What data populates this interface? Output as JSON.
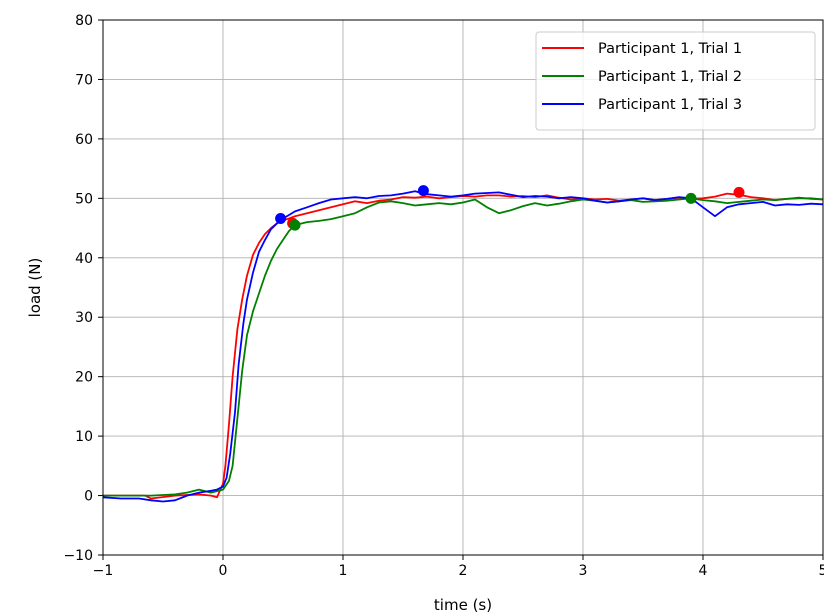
{
  "chart_data": {
    "type": "line",
    "title": "",
    "xlabel": "time (s)",
    "ylabel": "load (N)",
    "xlim": [
      -1,
      5
    ],
    "ylim": [
      -10,
      80
    ],
    "xticks": [
      -1,
      0,
      1,
      2,
      3,
      4,
      5
    ],
    "yticks": [
      -10,
      0,
      10,
      20,
      30,
      40,
      50,
      60,
      70,
      80
    ],
    "xtick_labels": [
      "−1",
      "0",
      "1",
      "2",
      "3",
      "4",
      "5"
    ],
    "ytick_labels": [
      "−10",
      "0",
      "10",
      "20",
      "30",
      "40",
      "50",
      "60",
      "70",
      "80"
    ],
    "grid": true,
    "legend_position": "top-right",
    "series": [
      {
        "name": "Participant 1, Trial 1",
        "color": "#ff0000",
        "x": [
          -1,
          -0.8,
          -0.65,
          -0.6,
          -0.4,
          -0.2,
          -0.1,
          -0.05,
          0,
          0.02,
          0.05,
          0.08,
          0.12,
          0.16,
          0.2,
          0.25,
          0.3,
          0.35,
          0.4,
          0.45,
          0.5,
          0.55,
          0.6,
          0.7,
          0.8,
          0.9,
          1.0,
          1.1,
          1.2,
          1.3,
          1.4,
          1.5,
          1.6,
          1.7,
          1.8,
          1.9,
          2.0,
          2.1,
          2.2,
          2.3,
          2.4,
          2.5,
          2.6,
          2.7,
          2.8,
          2.9,
          3.0,
          3.1,
          3.2,
          3.3,
          3.4,
          3.5,
          3.6,
          3.7,
          3.8,
          3.9,
          4.0,
          4.1,
          4.2,
          4.3,
          4.4,
          4.5,
          4.6,
          4.7,
          4.8,
          4.9,
          5.0
        ],
        "y": [
          0,
          0,
          0,
          -0.5,
          0,
          0.2,
          0,
          -0.3,
          2,
          5,
          12,
          20,
          28,
          33,
          37,
          40.5,
          42.5,
          44,
          45,
          45.8,
          46.3,
          46.6,
          47,
          47.5,
          48,
          48.5,
          49,
          49.5,
          49.2,
          49.6,
          49.8,
          50.2,
          50.1,
          50.3,
          50,
          50.2,
          50.4,
          50.3,
          50.5,
          50.5,
          50.3,
          50.4,
          50.2,
          50.5,
          50.1,
          49.8,
          50,
          49.8,
          49.9,
          49.6,
          49.8,
          50,
          49.7,
          49.9,
          50.1,
          49.9,
          50,
          50.3,
          50.8,
          50.6,
          50.2,
          50,
          49.7,
          49.9,
          50.1,
          49.9,
          49.8
        ]
      },
      {
        "name": "Participant 1, Trial 2",
        "color": "#008000",
        "x": [
          -1,
          -0.8,
          -0.6,
          -0.4,
          -0.3,
          -0.2,
          -0.1,
          0,
          0.05,
          0.08,
          0.1,
          0.13,
          0.16,
          0.2,
          0.25,
          0.3,
          0.35,
          0.4,
          0.45,
          0.5,
          0.55,
          0.6,
          0.7,
          0.8,
          0.9,
          1.0,
          1.1,
          1.2,
          1.3,
          1.4,
          1.5,
          1.6,
          1.7,
          1.8,
          1.9,
          2.0,
          2.1,
          2.2,
          2.3,
          2.4,
          2.5,
          2.6,
          2.7,
          2.8,
          2.9,
          3.0,
          3.1,
          3.2,
          3.3,
          3.4,
          3.5,
          3.6,
          3.7,
          3.8,
          3.9,
          4.0,
          4.1,
          4.2,
          4.3,
          4.4,
          4.5,
          4.6,
          4.7,
          4.8,
          4.9,
          5.0
        ],
        "y": [
          0,
          0,
          0,
          0.2,
          0.5,
          1,
          0.5,
          1,
          2.5,
          5,
          9,
          15,
          21,
          27,
          31,
          34,
          37,
          39.5,
          41.5,
          43,
          44.5,
          45.5,
          46,
          46.2,
          46.5,
          47,
          47.5,
          48.5,
          49.3,
          49.5,
          49.2,
          48.8,
          49,
          49.2,
          49,
          49.3,
          49.8,
          48.5,
          47.5,
          48,
          48.7,
          49.2,
          48.8,
          49.1,
          49.5,
          49.8,
          49.6,
          49.3,
          49.5,
          49.7,
          49.4,
          49.5,
          49.6,
          49.8,
          50,
          49.7,
          49.5,
          49.2,
          49.4,
          49.6,
          49.8,
          49.7,
          49.9,
          50,
          50,
          49.8
        ]
      },
      {
        "name": "Participant 1, Trial 3",
        "color": "#0000ff",
        "x": [
          -1,
          -0.85,
          -0.7,
          -0.6,
          -0.5,
          -0.4,
          -0.3,
          -0.2,
          -0.1,
          -0.05,
          0,
          0.03,
          0.06,
          0.1,
          0.13,
          0.17,
          0.2,
          0.25,
          0.3,
          0.35,
          0.4,
          0.45,
          0.5,
          0.55,
          0.6,
          0.7,
          0.8,
          0.9,
          1.0,
          1.1,
          1.2,
          1.3,
          1.4,
          1.5,
          1.6,
          1.7,
          1.8,
          1.9,
          2.0,
          2.1,
          2.2,
          2.3,
          2.4,
          2.5,
          2.6,
          2.7,
          2.8,
          2.9,
          3.0,
          3.1,
          3.2,
          3.3,
          3.4,
          3.5,
          3.6,
          3.7,
          3.8,
          3.9,
          4.0,
          4.1,
          4.2,
          4.3,
          4.4,
          4.5,
          4.6,
          4.7,
          4.8,
          4.9,
          5.0
        ],
        "y": [
          -0.3,
          -0.5,
          -0.5,
          -0.8,
          -1,
          -0.8,
          0,
          0.5,
          0.8,
          1,
          1.5,
          3,
          7,
          14,
          22,
          29,
          33,
          37.5,
          41,
          43,
          44.8,
          45.8,
          46.6,
          47.2,
          47.8,
          48.5,
          49.2,
          49.8,
          50,
          50.2,
          50,
          50.4,
          50.5,
          50.8,
          51.2,
          50.7,
          50.5,
          50.3,
          50.5,
          50.8,
          50.9,
          51,
          50.6,
          50.2,
          50.4,
          50.3,
          50,
          50.2,
          50,
          49.6,
          49.3,
          49.5,
          49.8,
          50,
          49.7,
          49.9,
          50.2,
          50,
          48.5,
          47,
          48.5,
          49,
          49.2,
          49.4,
          48.8,
          49,
          48.9,
          49.1,
          49
        ]
      }
    ],
    "markers": [
      {
        "series": "Participant 1, Trial 1",
        "color": "#ff0000",
        "points": [
          [
            0.58,
            45.8
          ],
          [
            4.3,
            51
          ]
        ]
      },
      {
        "series": "Participant 1, Trial 2",
        "color": "#008000",
        "points": [
          [
            0.6,
            45.5
          ],
          [
            3.9,
            50
          ]
        ]
      },
      {
        "series": "Participant 1, Trial 3",
        "color": "#0000ff",
        "points": [
          [
            0.48,
            46.6
          ],
          [
            1.67,
            51.3
          ]
        ]
      }
    ]
  }
}
